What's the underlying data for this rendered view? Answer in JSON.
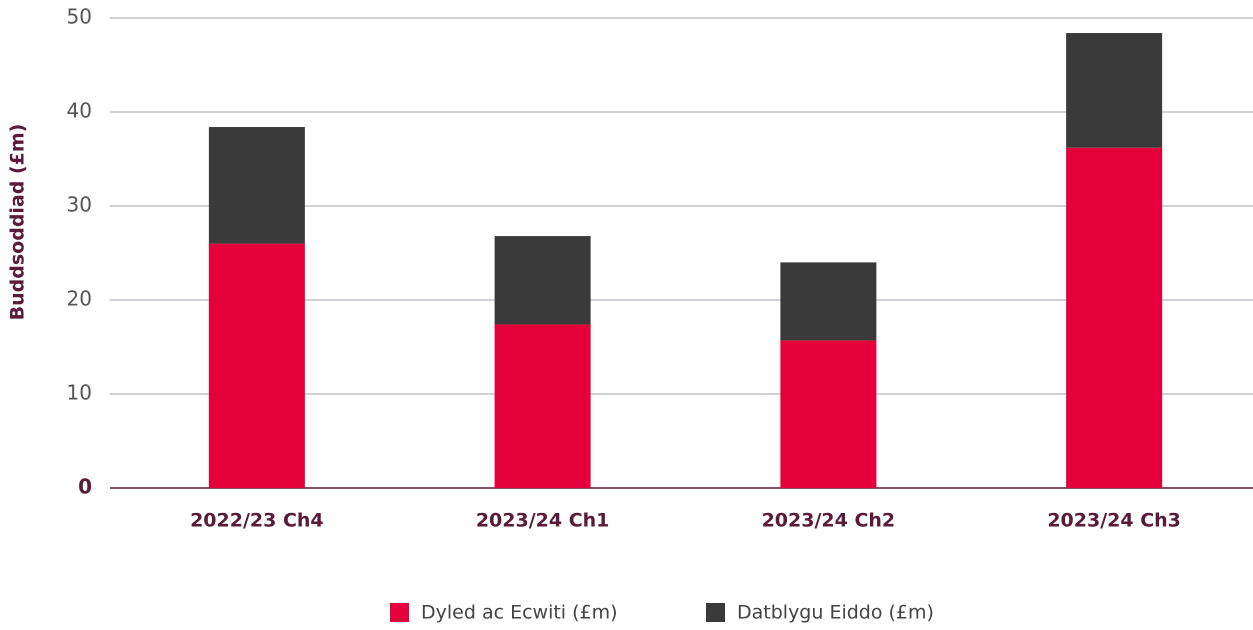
{
  "chart_data": {
    "type": "stacked_bar",
    "y_label": "Buddsoddiad (£m)",
    "categories": [
      "2022/23 Ch4",
      "2023/24 Ch1",
      "2023/24 Ch2",
      "2023/24 Ch3"
    ],
    "series": [
      {
        "name": "Dyled ac Ecwiti (£m)",
        "color": "#e4003b",
        "values": [
          26,
          17.4,
          15.7,
          36.2
        ]
      },
      {
        "name": "Datblygu Eiddo (£m)",
        "color": "#3a3a3a",
        "values": [
          12.4,
          9.4,
          8.3,
          12.2
        ]
      }
    ],
    "ylim": [
      0,
      50
    ],
    "yticks": [
      0,
      10,
      20,
      30,
      40,
      50
    ],
    "grid": true,
    "legend": "bottom"
  }
}
